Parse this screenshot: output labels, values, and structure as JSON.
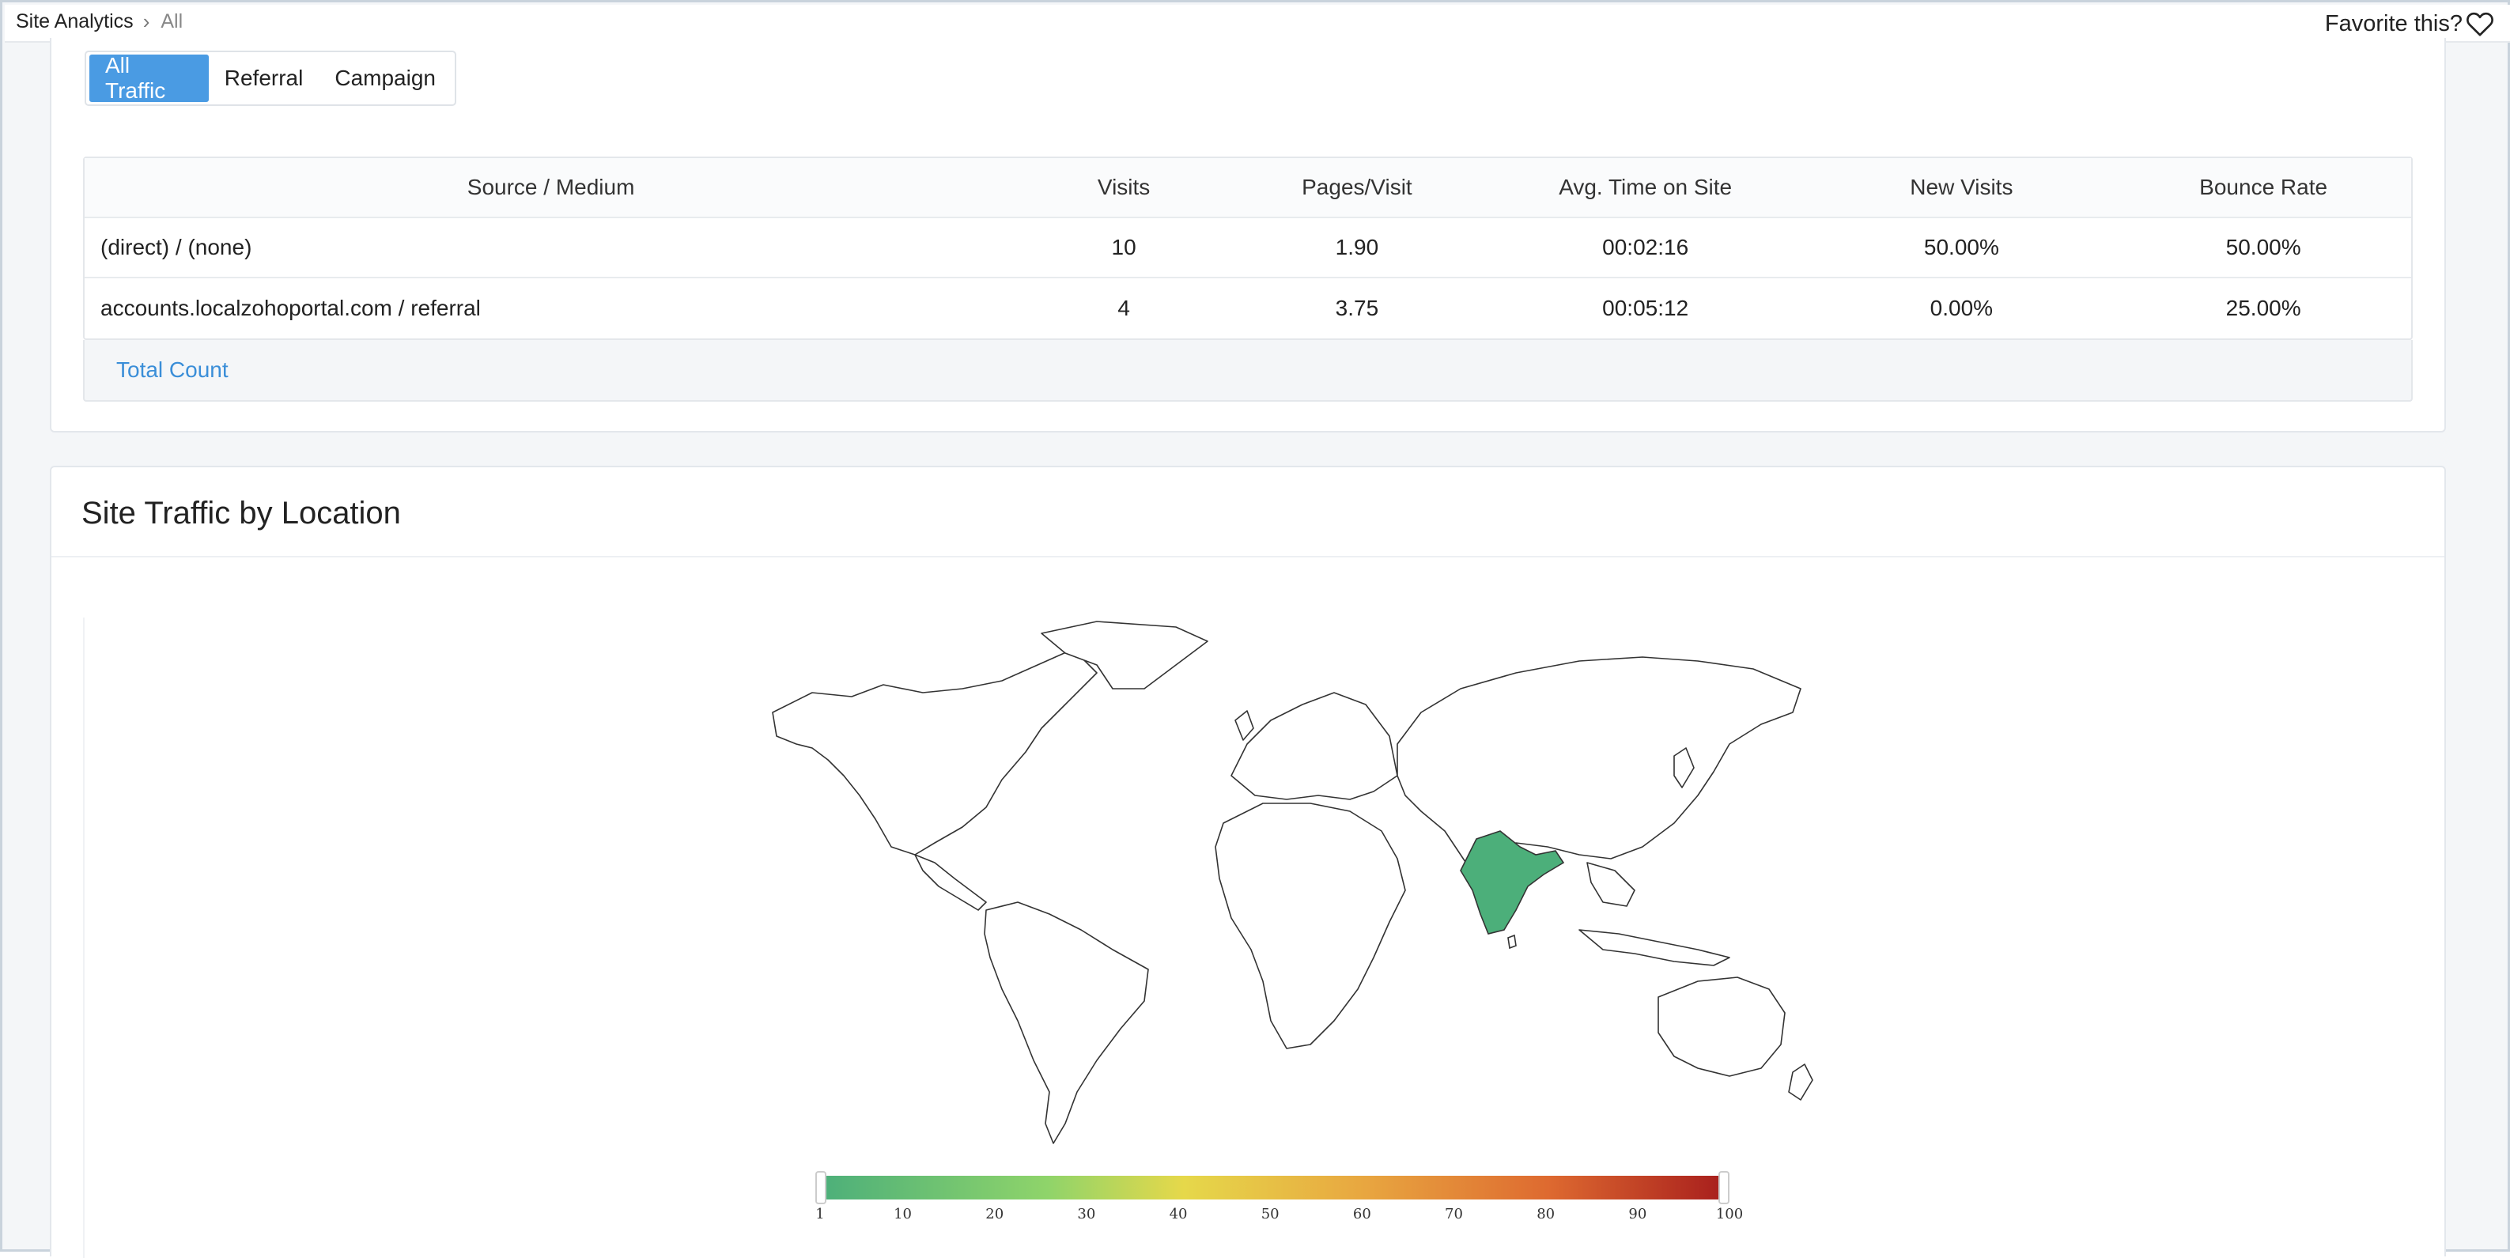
{
  "breadcrumb": {
    "root": "Site Analytics",
    "separator": "›",
    "current": "All"
  },
  "favorite": {
    "label": "Favorite this?",
    "icon": "heart-icon"
  },
  "tabs": [
    {
      "label": "All Traffic",
      "active": true
    },
    {
      "label": "Referral",
      "active": false
    },
    {
      "label": "Campaign",
      "active": false
    }
  ],
  "table": {
    "headers": [
      "Source / Medium",
      "Visits",
      "Pages/Visit",
      "Avg. Time on Site",
      "New Visits",
      "Bounce Rate"
    ],
    "rows": [
      [
        "(direct) / (none)",
        "10",
        "1.90",
        "00:02:16",
        "50.00%",
        "50.00%"
      ],
      [
        "accounts.localzohoportal.com / referral",
        "4",
        "3.75",
        "00:05:12",
        "0.00%",
        "25.00%"
      ]
    ],
    "total_label": "Total Count"
  },
  "location_section": {
    "title": "Site Traffic by Location",
    "highlighted_country": "India",
    "highlight_color": "#4caf7a",
    "legend": {
      "ticks": [
        "1",
        "10",
        "20",
        "30",
        "40",
        "50",
        "60",
        "70",
        "80",
        "90",
        "100"
      ],
      "min": 1,
      "max": 100
    }
  },
  "colors": {
    "accent": "#4a9be3",
    "link": "#3a8ed8"
  }
}
